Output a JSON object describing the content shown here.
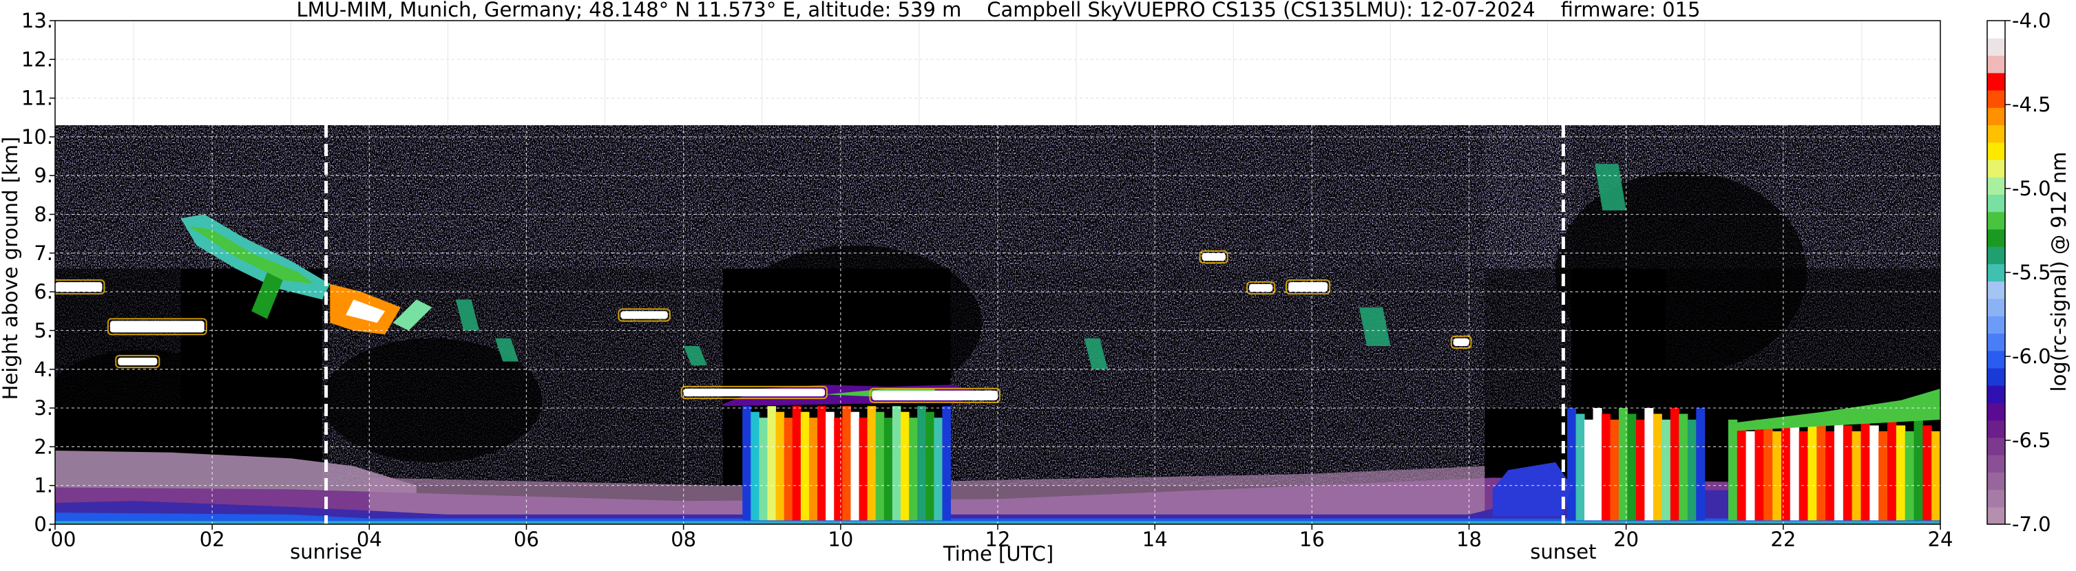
{
  "chart_data": {
    "type": "heatmap",
    "title": "LMU-MIM, Munich, Germany; 48.148° N 11.573° E, altitude: 539 m    Campbell SkyVUEPRO CS135 (CS135LMU): 12-07-2024    firmware: 015",
    "xlabel": "Time [UTC]",
    "ylabel": "Height above ground [km]",
    "xlim": [
      0,
      24
    ],
    "ylim": [
      0,
      13
    ],
    "x_ticks": [
      0,
      2,
      4,
      6,
      8,
      10,
      12,
      14,
      16,
      18,
      20,
      22,
      24
    ],
    "x_tick_labels": [
      "00",
      "02",
      "04",
      "06",
      "08",
      "10",
      "12",
      "14",
      "16",
      "18",
      "20",
      "22",
      "24"
    ],
    "y_ticks": [
      0,
      1,
      2,
      3,
      4,
      5,
      6,
      7,
      8,
      9,
      10,
      11,
      12,
      13
    ],
    "y_tick_labels": [
      "0.",
      "1.",
      "2.",
      "3.",
      "4.",
      "5.",
      "6.",
      "7.",
      "8.",
      "9.",
      "10.",
      "11.",
      "12.",
      "13."
    ],
    "grid": true,
    "data_top_km": 10.3,
    "annotations": [
      {
        "label": "sunrise",
        "x": 3.45
      },
      {
        "label": "sunset",
        "x": 19.2
      }
    ],
    "colorbar": {
      "label": "log(rc-signal) @ 912 nm",
      "range": [
        -7.0,
        -4.0
      ],
      "tick_values": [
        -4.0,
        -4.5,
        -5.0,
        -5.5,
        -6.0,
        -6.5,
        -7.0
      ],
      "tick_labels": [
        "-4.0",
        "-4.5",
        "-5.0",
        "-5.5",
        "-6.0",
        "-6.5",
        "-7.0"
      ],
      "colors_bottom_to_top": [
        "#b48fae",
        "#a67ba6",
        "#98669c",
        "#8a4f94",
        "#7c3a8d",
        "#6c1e8a",
        "#5a0a93",
        "#2f10b0",
        "#1a3ad8",
        "#2a5cf0",
        "#4a7ef6",
        "#6c9cf8",
        "#8cb2f6",
        "#a4c4f4",
        "#40c0b0",
        "#20a070",
        "#1a9a20",
        "#48c440",
        "#78e0a0",
        "#a8f0a0",
        "#e8f46a",
        "#ffe800",
        "#ffc000",
        "#ff9000",
        "#ff5000",
        "#ff0000",
        "#f0b8b8",
        "#ece4e4",
        "#ffffff"
      ]
    },
    "features": [
      {
        "name": "boundary layer aerosol",
        "x": [
          0,
          24
        ],
        "height_km": [
          0,
          1.0
        ]
      },
      {
        "name": "residual layer",
        "x": [
          0,
          4.0
        ],
        "height_km": [
          0.3,
          1.9
        ]
      },
      {
        "name": "cloud 5-6 km",
        "x": [
          0,
          0.6
        ],
        "height_km": [
          5.9,
          6.3
        ]
      },
      {
        "name": "cloud 5 km",
        "x": [
          0.6,
          1.9
        ],
        "height_km": [
          4.8,
          5.3
        ]
      },
      {
        "name": "ice fall streak",
        "x": [
          1.6,
          3.5
        ],
        "height_km": [
          5.2,
          8.0
        ]
      },
      {
        "name": "cloud near sunrise",
        "x": [
          3.5,
          4.4
        ],
        "height_km": [
          4.9,
          6.2
        ]
      },
      {
        "name": "cloud 5.4 km",
        "x": [
          7.2,
          7.8
        ],
        "height_km": [
          5.2,
          5.6
        ]
      },
      {
        "name": "convective cloud",
        "x": [
          8.7,
          11.4
        ],
        "height_km": [
          0.1,
          3.6
        ]
      },
      {
        "name": "cloud 3.3 km",
        "x": [
          8.0,
          12.0
        ],
        "height_km": [
          3.1,
          3.6
        ]
      },
      {
        "name": "cloud 6 km",
        "x": [
          15.0,
          16.3
        ],
        "height_km": [
          5.9,
          6.4
        ]
      },
      {
        "name": "cloud 9 km",
        "x": [
          19.3,
          19.8
        ],
        "height_km": [
          8.1,
          9.4
        ]
      },
      {
        "name": "evening convection",
        "x": [
          19.2,
          21.0
        ],
        "height_km": [
          0.1,
          3.7
        ]
      },
      {
        "name": "night boundary layer clouds",
        "x": [
          21.3,
          24.0
        ],
        "height_km": [
          0.1,
          3.5
        ]
      }
    ]
  }
}
